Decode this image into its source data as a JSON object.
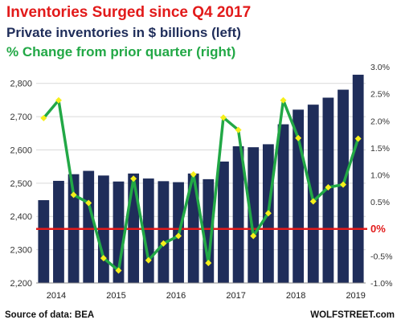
{
  "title": "Inventories Surged since Q4 2017",
  "subtitle": "Private inventories in $ billions (left)",
  "subtitle2": "% Change from prior quarter (right)",
  "source": "Source of data: BEA",
  "credit": "WOLFSTREET.com",
  "colors": {
    "title": "#e21a1a",
    "bars": "#1f2d5a",
    "line": "#22a846",
    "markers": "#f5ef1a",
    "zero_line": "#e21a1a"
  },
  "chart_data": {
    "type": "bar",
    "x_ticks": [
      "2014",
      "2015",
      "2016",
      "2017",
      "2018",
      "2019"
    ],
    "left_axis": {
      "ylim": [
        2200,
        2850
      ],
      "ticks": [
        "2,200",
        "2,300",
        "2,400",
        "2,500",
        "2,600",
        "2,700",
        "2,800"
      ]
    },
    "right_axis": {
      "ylim": [
        -1.0,
        3.0
      ],
      "ticks": [
        "-1.0%",
        "-0.5%",
        "0%",
        "0.5%",
        "1.0%",
        "1.5%",
        "2.0%",
        "2.5%",
        "3.0%"
      ],
      "highlight": "0%"
    },
    "series": [
      {
        "name": "Private inventories in $ billions",
        "type": "bar",
        "axis": "left",
        "values": [
          2449,
          2507,
          2527,
          2537,
          2523,
          2505,
          2529,
          2514,
          2506,
          2503,
          2529,
          2512,
          2565,
          2611,
          2608,
          2617,
          2677,
          2721,
          2736,
          2757,
          2781,
          2826
        ]
      },
      {
        "name": "% Change from prior quarter",
        "type": "line",
        "axis": "right",
        "values": [
          2.05,
          2.38,
          0.63,
          0.48,
          -0.54,
          -0.77,
          0.93,
          -0.58,
          -0.27,
          -0.13,
          1.01,
          -0.63,
          2.06,
          1.83,
          -0.13,
          0.29,
          2.38,
          1.68,
          0.51,
          0.77,
          0.82,
          1.67
        ]
      }
    ]
  }
}
